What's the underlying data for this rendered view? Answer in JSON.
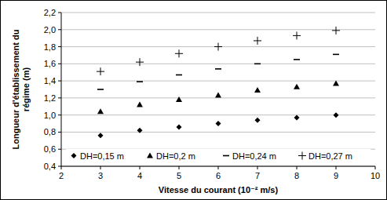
{
  "chart_data": {
    "type": "scatter",
    "xlabel": "Vitesse du courant (10⁻² m/s)",
    "ylabel": "Longueur d'établissement du régime (m)",
    "x": [
      3,
      4,
      5,
      6,
      7,
      8,
      9
    ],
    "series": [
      {
        "name": "DH=0,15 m",
        "color": "#000000",
        "marker": "diamond",
        "values": [
          0.76,
          0.82,
          0.86,
          0.9,
          0.94,
          0.97,
          1.0
        ]
      },
      {
        "name": "DH=0,2 m",
        "color": "#000000",
        "marker": "triangle",
        "values": [
          1.04,
          1.12,
          1.18,
          1.23,
          1.29,
          1.33,
          1.37
        ]
      },
      {
        "name": "DH=0,24 m",
        "color": "#000000",
        "marker": "dash",
        "values": [
          1.3,
          1.39,
          1.47,
          1.54,
          1.6,
          1.65,
          1.71
        ]
      },
      {
        "name": "DH=0,27 m",
        "color": "#000000",
        "marker": "plus",
        "values": [
          1.51,
          1.62,
          1.72,
          1.8,
          1.87,
          1.93,
          1.99
        ]
      }
    ],
    "xlim": [
      2,
      10
    ],
    "xticks": [
      2,
      3,
      4,
      5,
      6,
      7,
      8,
      9,
      10
    ],
    "ylim": [
      0.4,
      2.2
    ],
    "yticks": [
      {
        "value": 0.4,
        "label": "0,4"
      },
      {
        "value": 0.6,
        "label": "0,6"
      },
      {
        "value": 0.8,
        "label": "0,8"
      },
      {
        "value": 1.0,
        "label": "1,0"
      },
      {
        "value": 1.2,
        "label": "1,2"
      },
      {
        "value": 1.4,
        "label": "1,4"
      },
      {
        "value": 1.6,
        "label": "1,6"
      },
      {
        "value": 1.8,
        "label": "1,8"
      },
      {
        "value": 2.0,
        "label": "2,0"
      },
      {
        "value": 2.2,
        "label": "2,2"
      }
    ],
    "grid": true,
    "legend": "bottom"
  }
}
